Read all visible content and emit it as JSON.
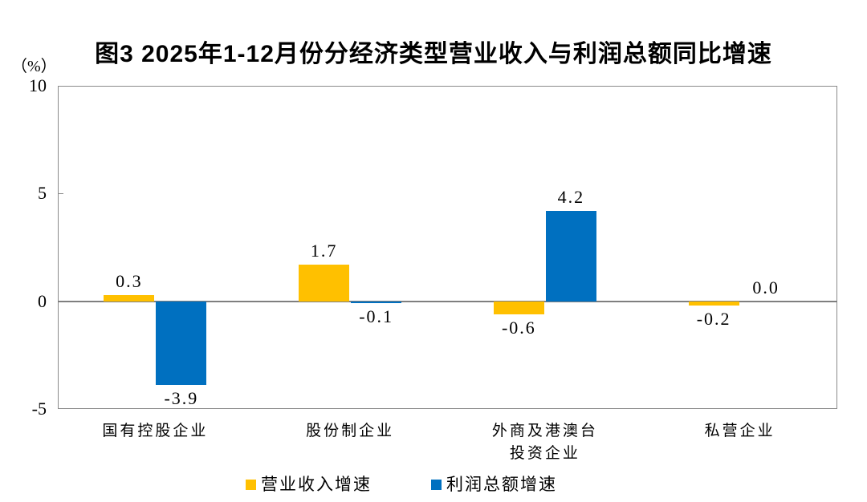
{
  "chart_data": {
    "type": "bar",
    "title": "图3  2025年1-12月份分经济类型营业收入与利润总额同比增速",
    "unit_label": "（%）",
    "categories": [
      "国有控股企业",
      "股份制企业",
      "外商及港澳台\n投资企业",
      "私营企业"
    ],
    "series": [
      {
        "name": "营业收入增速",
        "semantic": "revenue-growth",
        "color": "#FFC000",
        "values": [
          0.3,
          1.7,
          -0.6,
          -0.2
        ],
        "labels": [
          "0.3",
          "1.7",
          "-0.6",
          "-0.2"
        ]
      },
      {
        "name": "利润总额增速",
        "semantic": "profit-growth",
        "color": "#0070C0",
        "values": [
          -3.9,
          -0.1,
          4.2,
          0.0
        ],
        "labels": [
          "-3.9",
          "-0.1",
          "4.2",
          "0.0"
        ]
      }
    ],
    "y_ticks": [
      10,
      5,
      0,
      -5
    ],
    "ylim": [
      -5,
      10
    ],
    "grid": false,
    "zero_line": true,
    "legend_position": "bottom"
  }
}
